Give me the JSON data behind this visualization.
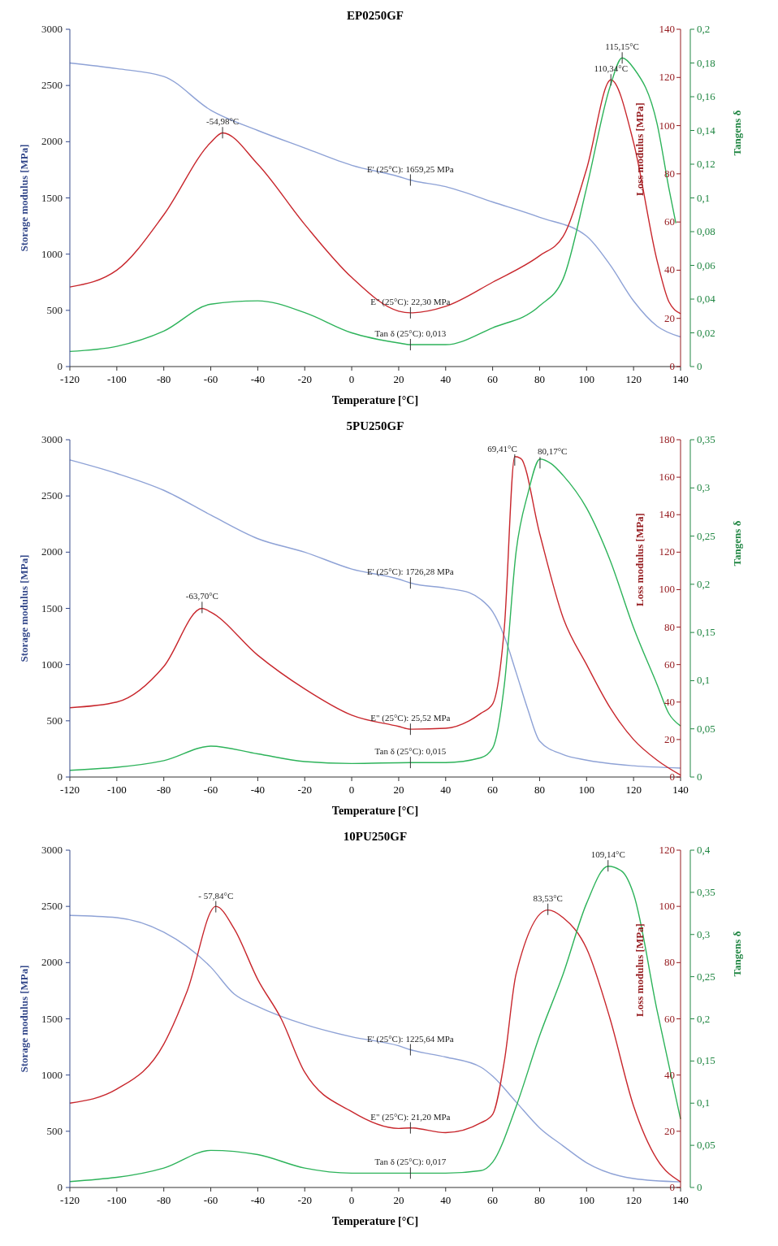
{
  "chart_data": [
    {
      "type": "line",
      "title": "EP0250GF",
      "xlabel": "Temperature [°C]",
      "ylabel": "Storage modulus [MPa]",
      "y2label": "Loss modulus [MPa]",
      "y3label": "Tangens δ",
      "xlim": [
        -120,
        140
      ],
      "xticks": [
        -120,
        -100,
        -80,
        -60,
        -40,
        -20,
        0,
        20,
        40,
        60,
        80,
        100,
        120,
        140
      ],
      "ylim": [
        0,
        3000
      ],
      "yticks": [
        0,
        500,
        1000,
        1500,
        2000,
        2500,
        3000
      ],
      "y2lim": [
        0,
        140
      ],
      "y2ticks": [
        0,
        20,
        40,
        60,
        80,
        100,
        120,
        140
      ],
      "y3lim": [
        0,
        0.2
      ],
      "y3ticks": [
        {
          "value": 0,
          "label": "0"
        },
        {
          "value": 0.02,
          "label": "0,02"
        },
        {
          "value": 0.04,
          "label": "0,04"
        },
        {
          "value": 0.06,
          "label": "0,06"
        },
        {
          "value": 0.08,
          "label": "0,08"
        },
        {
          "value": 0.1,
          "label": "0,1"
        },
        {
          "value": 0.12,
          "label": "0,12"
        },
        {
          "value": 0.14,
          "label": "0,14"
        },
        {
          "value": 0.16,
          "label": "0,16"
        },
        {
          "value": 0.18,
          "label": "0,18"
        },
        {
          "value": 0.2,
          "label": "0,2"
        }
      ],
      "series": [
        {
          "color": "#8ea2d6",
          "x": [
            -120,
            -100,
            -80,
            -60,
            -40,
            -20,
            0,
            20,
            25,
            40,
            60,
            80,
            100,
            110,
            120,
            130,
            140
          ],
          "values": [
            2700,
            2650,
            2580,
            2280,
            2100,
            1944,
            1790,
            1690,
            1659,
            1600,
            1464,
            1328,
            1160,
            904,
            584,
            360,
            264
          ]
        },
        {
          "color": "#c8262c",
          "axis": "y2",
          "x": [
            -120,
            -100,
            -80,
            -60,
            -54.98,
            -40,
            -20,
            0,
            20,
            25,
            40,
            60,
            80,
            90,
            100,
            110.34,
            120,
            130,
            135,
            140
          ],
          "values": [
            33,
            40,
            63,
            93,
            97,
            84,
            59,
            37,
            23,
            22.3,
            25,
            35,
            46,
            54,
            82,
            119,
            93,
            44,
            27,
            22
          ]
        },
        {
          "color": "#2db35a",
          "axis": "y3",
          "x": [
            -120,
            -100,
            -80,
            -60,
            -40,
            -20,
            0,
            20,
            25,
            40,
            60,
            80,
            90,
            100,
            110,
            115.15,
            120,
            130,
            135,
            138
          ],
          "values": [
            0.009,
            0.012,
            0.021,
            0.037,
            0.039,
            0.032,
            0.02,
            0.014,
            0.013,
            0.013,
            0.023,
            0.036,
            0.052,
            0.106,
            0.166,
            0.183,
            0.177,
            0.144,
            0.106,
            0.085
          ]
        }
      ],
      "annotations": [
        {
          "text": "-54,98°C",
          "x": -54.98,
          "y": 2080
        },
        {
          "text": "110,34°C",
          "x": 110.34,
          "y": 2550
        },
        {
          "text": "115,15°C",
          "x": 115.15,
          "y": 2745
        },
        {
          "text": "E' (25°C): 1659,25 MPa",
          "x": 25,
          "y": 1659
        },
        {
          "text": "E\" (25°C): 22,30 MPa",
          "x": 25,
          "y": 478
        },
        {
          "text": "Tan δ (25°C): 0,013",
          "x": 25,
          "y": 195
        }
      ]
    },
    {
      "type": "line",
      "title": "5PU250GF",
      "xlabel": "Temperature [°C]",
      "ylabel": "Storage modulus [MPa]",
      "y2label": "Loss modulus [MPa]",
      "y3label": "Tangens δ",
      "xlim": [
        -120,
        140
      ],
      "xticks": [
        -120,
        -100,
        -80,
        -60,
        -40,
        -20,
        0,
        20,
        40,
        60,
        80,
        100,
        120,
        140
      ],
      "ylim": [
        0,
        3000
      ],
      "yticks": [
        0,
        500,
        1000,
        1500,
        2000,
        2500,
        3000
      ],
      "y2lim": [
        0,
        180
      ],
      "y2ticks": [
        0,
        20,
        40,
        60,
        80,
        100,
        120,
        140,
        160,
        180
      ],
      "y3lim": [
        0,
        0.35
      ],
      "y3ticks": [
        {
          "value": 0,
          "label": "0"
        },
        {
          "value": 0.05,
          "label": "0,05"
        },
        {
          "value": 0.1,
          "label": "0,1"
        },
        {
          "value": 0.15,
          "label": "0,15"
        },
        {
          "value": 0.2,
          "label": "0,2"
        },
        {
          "value": 0.25,
          "label": "0,25"
        },
        {
          "value": 0.3,
          "label": "0,3"
        },
        {
          "value": 0.35,
          "label": "0,35"
        }
      ],
      "series": [
        {
          "color": "#8ea2d6",
          "x": [
            -120,
            -100,
            -80,
            -60,
            -40,
            -20,
            0,
            20,
            25,
            40,
            50,
            55,
            60,
            65,
            70,
            75,
            80,
            90,
            100,
            120,
            140
          ],
          "values": [
            2820,
            2700,
            2550,
            2330,
            2120,
            2000,
            1850,
            1760,
            1726,
            1680,
            1640,
            1580,
            1470,
            1250,
            930,
            600,
            320,
            200,
            150,
            100,
            80
          ]
        },
        {
          "color": "#c8262c",
          "axis": "y2",
          "x": [
            -120,
            -100,
            -80,
            -63.7,
            -60,
            -40,
            -20,
            0,
            20,
            25,
            40,
            50,
            55,
            60,
            65,
            69.41,
            72,
            80,
            90,
            100,
            110,
            120,
            130,
            140
          ],
          "values": [
            37,
            40,
            59,
            90,
            88,
            65,
            47,
            33,
            27,
            25.52,
            26,
            30,
            34,
            39,
            80,
            171,
            170,
            130,
            85,
            60,
            37,
            20,
            9,
            1
          ]
        },
        {
          "color": "#2db35a",
          "axis": "y3",
          "x": [
            -120,
            -80,
            -60,
            -40,
            -20,
            0,
            25,
            40,
            55,
            60,
            65,
            70,
            75,
            80.17,
            85,
            90,
            100,
            110,
            120,
            130,
            135,
            140
          ],
          "values": [
            0.007,
            0.017,
            0.032,
            0.024,
            0.016,
            0.014,
            0.015,
            0.015,
            0.02,
            0.03,
            0.096,
            0.234,
            0.294,
            0.33,
            0.325,
            0.313,
            0.279,
            0.225,
            0.155,
            0.096,
            0.066,
            0.053
          ]
        }
      ],
      "annotations": [
        {
          "text": "-63,70°C",
          "x": -63.7,
          "y": 1508
        },
        {
          "text": "69,41°C",
          "x": 69.41,
          "y": 2820
        },
        {
          "text": "80,17°C",
          "x": 80.17,
          "y": 2795
        },
        {
          "text": "E' (25°C): 1726,28 MPa",
          "x": 25,
          "y": 1726
        },
        {
          "text": "E\" (25°C): 25,52 MPa",
          "x": 25,
          "y": 425
        },
        {
          "text": "Tan δ (25°C): 0,015",
          "x": 25,
          "y": 129
        }
      ]
    },
    {
      "type": "line",
      "title": "10PU250GF",
      "xlabel": "Temperature [°C]",
      "ylabel": "Storage modulus [MPa]",
      "y2label": "Loss modulus [MPa]",
      "y3label": "Tangens δ",
      "xlim": [
        -120,
        140
      ],
      "xticks": [
        -120,
        -100,
        -80,
        -60,
        -40,
        -20,
        0,
        20,
        40,
        60,
        80,
        100,
        120,
        140
      ],
      "ylim": [
        0,
        3000
      ],
      "yticks": [
        0,
        500,
        1000,
        1500,
        2000,
        2500,
        3000
      ],
      "y2lim": [
        0,
        120
      ],
      "y2ticks": [
        0,
        20,
        40,
        60,
        80,
        100,
        120
      ],
      "y3lim": [
        0,
        0.4
      ],
      "y3ticks": [
        {
          "value": 0,
          "label": "0"
        },
        {
          "value": 0.05,
          "label": "0,05"
        },
        {
          "value": 0.1,
          "label": "0,1"
        },
        {
          "value": 0.15,
          "label": "0,15"
        },
        {
          "value": 0.2,
          "label": "0,2"
        },
        {
          "value": 0.25,
          "label": "0,25"
        },
        {
          "value": 0.3,
          "label": "0,3"
        },
        {
          "value": 0.35,
          "label": "0,35"
        },
        {
          "value": 0.4,
          "label": "0,4"
        }
      ],
      "series": [
        {
          "color": "#8ea2d6",
          "x": [
            -120,
            -100,
            -80,
            -60,
            -50,
            -40,
            -20,
            0,
            20,
            25,
            40,
            55,
            60,
            70,
            80,
            90,
            100,
            120,
            140
          ],
          "values": [
            2420,
            2400,
            2270,
            1960,
            1720,
            1610,
            1450,
            1340,
            1260,
            1225,
            1160,
            1070,
            990,
            760,
            530,
            370,
            220,
            80,
            50
          ]
        },
        {
          "color": "#c8262c",
          "axis": "y2",
          "x": [
            -120,
            -100,
            -80,
            -70,
            -57.84,
            -50,
            -40,
            -30,
            -20,
            0,
            20,
            25,
            40,
            55,
            60,
            65,
            70,
            83.53,
            90,
            100,
            110,
            120,
            130,
            140
          ],
          "values": [
            30,
            35,
            51,
            70,
            100,
            92,
            74,
            60,
            41,
            27,
            21,
            21.2,
            19.5,
            23,
            26,
            45,
            76,
            98.7,
            96,
            85,
            60,
            29,
            10,
            2
          ]
        },
        {
          "color": "#2db35a",
          "axis": "y3",
          "x": [
            -120,
            -80,
            -60,
            -40,
            -20,
            0,
            25,
            40,
            55,
            60,
            70,
            80,
            90,
            100,
            109.14,
            115,
            120,
            130,
            140
          ],
          "values": [
            0.007,
            0.023,
            0.044,
            0.039,
            0.023,
            0.017,
            0.017,
            0.017,
            0.02,
            0.03,
            0.096,
            0.18,
            0.253,
            0.337,
            0.381,
            0.375,
            0.348,
            0.21,
            0.081
          ]
        }
      ],
      "annotations": [
        {
          "text": "- 57,84°C",
          "x": -57.84,
          "y": 2497
        },
        {
          "text": "83,53°C",
          "x": 83.53,
          "y": 2474
        },
        {
          "text": "109,14°C",
          "x": 109.14,
          "y": 2861
        },
        {
          "text": "E' (25°C): 1225,64 MPa",
          "x": 25,
          "y": 1225
        },
        {
          "text": "E\" (25°C): 21,20 MPa",
          "x": 25,
          "y": 530
        },
        {
          "text": "Tan δ (25°C): 0,017",
          "x": 25,
          "y": 128
        }
      ]
    }
  ]
}
